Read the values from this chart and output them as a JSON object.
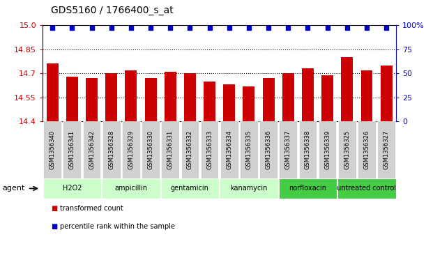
{
  "title": "GDS5160 / 1766400_s_at",
  "samples": [
    "GSM1356340",
    "GSM1356341",
    "GSM1356342",
    "GSM1356328",
    "GSM1356329",
    "GSM1356330",
    "GSM1356331",
    "GSM1356332",
    "GSM1356333",
    "GSM1356334",
    "GSM1356335",
    "GSM1356336",
    "GSM1356337",
    "GSM1356338",
    "GSM1356339",
    "GSM1356325",
    "GSM1356326",
    "GSM1356327"
  ],
  "bar_values": [
    14.76,
    14.68,
    14.67,
    14.7,
    14.72,
    14.67,
    14.71,
    14.7,
    14.65,
    14.63,
    14.62,
    14.67,
    14.7,
    14.73,
    14.69,
    14.8,
    14.72,
    14.75
  ],
  "groups": [
    {
      "label": "H2O2",
      "start": 0,
      "end": 3,
      "color": "#ccffcc"
    },
    {
      "label": "ampicillin",
      "start": 3,
      "end": 6,
      "color": "#ccffcc"
    },
    {
      "label": "gentamicin",
      "start": 6,
      "end": 9,
      "color": "#ccffcc"
    },
    {
      "label": "kanamycin",
      "start": 9,
      "end": 12,
      "color": "#ccffcc"
    },
    {
      "label": "norfloxacin",
      "start": 12,
      "end": 15,
      "color": "#44cc44"
    },
    {
      "label": "untreated control",
      "start": 15,
      "end": 18,
      "color": "#44cc44"
    }
  ],
  "bar_color": "#cc0000",
  "dot_color": "#0000cc",
  "sample_box_color": "#d0d0d0",
  "ylim_left": [
    14.4,
    15.0
  ],
  "ylim_right": [
    0,
    100
  ],
  "yticks_left": [
    14.4,
    14.55,
    14.7,
    14.85,
    15.0
  ],
  "yticks_right": [
    0,
    25,
    50,
    75,
    100
  ],
  "ytick_labels_right": [
    "0",
    "25",
    "50",
    "75",
    "100%"
  ],
  "title_fontsize": 10,
  "bar_width": 0.6,
  "legend_items": [
    "transformed count",
    "percentile rank within the sample"
  ]
}
